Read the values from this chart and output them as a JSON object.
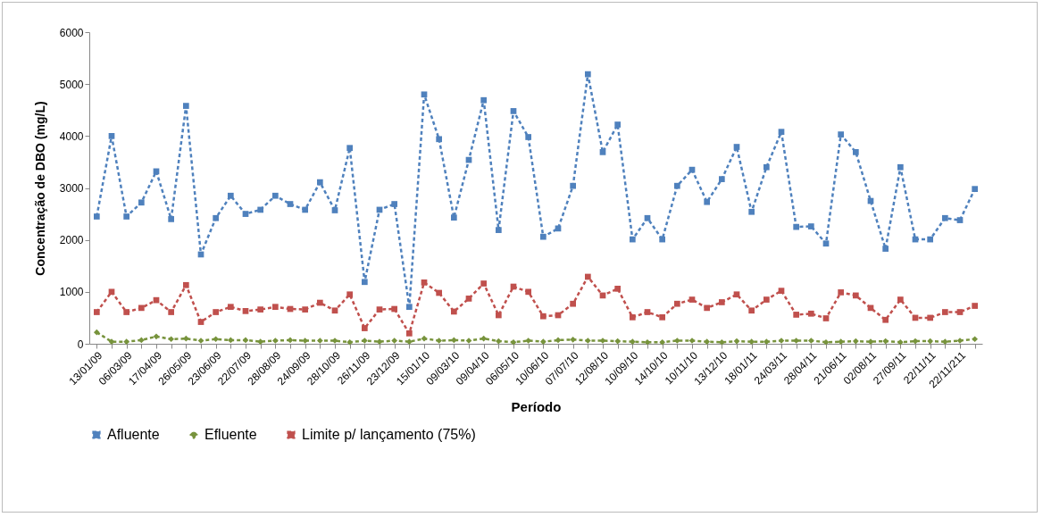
{
  "chart_data": {
    "type": "line",
    "xlabel": "Período",
    "ylabel": "Concentração de DBO (mg/L)",
    "categories": [
      "13/01/09",
      null,
      "06/03/09",
      null,
      "17/04/09",
      null,
      "26/05/09",
      null,
      "23/06/09",
      null,
      "22/07/09",
      null,
      "28/08/09",
      null,
      "24/09/09",
      null,
      "28/10/09",
      null,
      "26/11/09",
      null,
      "23/12/09",
      null,
      "15/01/10",
      null,
      "09/03/10",
      null,
      "09/04/10",
      null,
      "06/05/10",
      null,
      "10/06/10",
      null,
      "07/07/10",
      null,
      "12/08/10",
      null,
      "10/09/10",
      null,
      "14/10/10",
      null,
      "10/11/10",
      null,
      "13/12/10",
      null,
      "18/01/11",
      null,
      "24/03/11",
      null,
      "28/04/11",
      null,
      "21/06/11",
      null,
      "02/08/11",
      null,
      "27/09/11",
      null,
      "22/11/11",
      null,
      "22/11/211",
      null
    ],
    "series": [
      {
        "name": "Afluente",
        "color": "#4f81bd",
        "values": [
          2450,
          4000,
          2450,
          2720,
          3320,
          2400,
          4580,
          1720,
          2420,
          2850,
          2500,
          2580,
          2850,
          2690,
          2580,
          3110,
          2570,
          3770,
          1190,
          2580,
          2690,
          710,
          4800,
          3940,
          2430,
          3540,
          4690,
          2190,
          4480,
          3980,
          2060,
          2220,
          3040,
          5190,
          3690,
          4220,
          2010,
          2420,
          2010,
          3040,
          3350,
          2730,
          3170,
          3790,
          2540,
          3400,
          4080,
          2250,
          2260,
          1930,
          4030,
          3690,
          2750,
          1830,
          3400,
          2010,
          2010,
          2420,
          2380,
          2980
        ]
      },
      {
        "name": "Efluente",
        "color": "#77933c",
        "marker": "diamond",
        "values": [
          220,
          40,
          40,
          70,
          140,
          90,
          100,
          60,
          90,
          70,
          70,
          40,
          60,
          70,
          60,
          60,
          60,
          30,
          60,
          40,
          60,
          40,
          100,
          60,
          70,
          60,
          100,
          50,
          30,
          60,
          40,
          70,
          80,
          60,
          60,
          50,
          40,
          30,
          30,
          60,
          60,
          40,
          30,
          50,
          40,
          40,
          60,
          60,
          60,
          30,
          40,
          50,
          40,
          50,
          30,
          50,
          50,
          40,
          60,
          90
        ]
      },
      {
        "name": "Limite p/ lançamento (75%)",
        "color": "#c0504d",
        "values": [
          610,
          1000,
          610,
          690,
          840,
          610,
          1130,
          420,
          610,
          710,
          630,
          660,
          710,
          670,
          660,
          790,
          640,
          950,
          300,
          660,
          670,
          200,
          1180,
          980,
          620,
          870,
          1160,
          550,
          1100,
          1000,
          530,
          550,
          770,
          1290,
          930,
          1060,
          510,
          610,
          510,
          770,
          850,
          690,
          800,
          950,
          640,
          850,
          1020,
          560,
          580,
          490,
          990,
          930,
          690,
          460,
          850,
          500,
          500,
          610,
          610,
          730
        ]
      }
    ],
    "ylim": [
      0,
      6000
    ],
    "yticks": [
      0,
      1000,
      2000,
      3000,
      4000,
      5000,
      6000
    ],
    "grid": false,
    "legend": "bottom",
    "marker": "square",
    "line_style": "dashed"
  }
}
